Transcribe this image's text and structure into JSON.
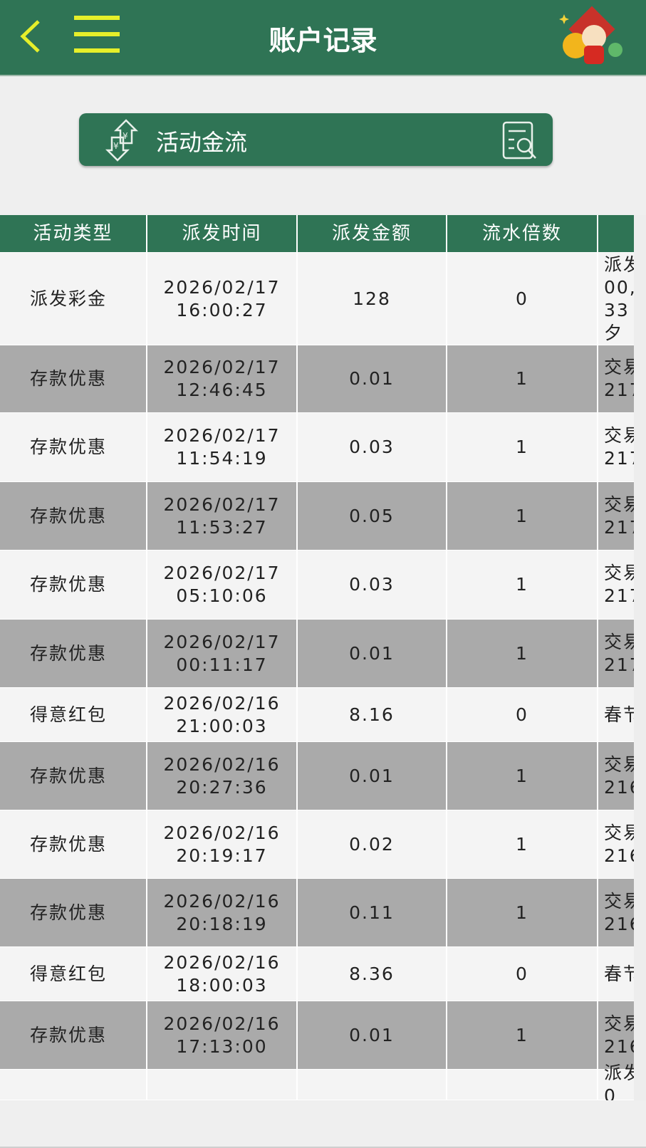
{
  "header": {
    "title": "账户记录",
    "back_icon": "chevron-left-icon",
    "menu_icon": "hamburger-menu-icon",
    "mascot_icon": "new-year-mascot-icon"
  },
  "banner": {
    "label": "活动金流",
    "left_icon": "currency-exchange-arrows-icon",
    "right_icon": "document-search-icon"
  },
  "colors": {
    "brand": "#2f7455",
    "accent": "#e6ef2a",
    "row_alt": "#aaaaaa",
    "row": "#f4f4f4"
  },
  "table": {
    "columns": [
      "活动类型",
      "派发时间",
      "派发金额",
      "流水倍数",
      ""
    ],
    "rows": [
      {
        "type": "派发彩金",
        "time": "2026/02/17\n16:00:27",
        "amount": "128",
        "multiplier": "0",
        "note": "派发\n00,\n33\n夕"
      },
      {
        "type": "存款优惠",
        "time": "2026/02/17\n12:46:45",
        "amount": "0.01",
        "multiplier": "1",
        "note": "交易\n217"
      },
      {
        "type": "存款优惠",
        "time": "2026/02/17\n11:54:19",
        "amount": "0.03",
        "multiplier": "1",
        "note": "交易\n217"
      },
      {
        "type": "存款优惠",
        "time": "2026/02/17\n11:53:27",
        "amount": "0.05",
        "multiplier": "1",
        "note": "交易\n217"
      },
      {
        "type": "存款优惠",
        "time": "2026/02/17\n05:10:06",
        "amount": "0.03",
        "multiplier": "1",
        "note": "交易\n217"
      },
      {
        "type": "存款优惠",
        "time": "2026/02/17\n00:11:17",
        "amount": "0.01",
        "multiplier": "1",
        "note": "交易\n217"
      },
      {
        "type": "得意红包",
        "time": "2026/02/16\n21:00:03",
        "amount": "8.16",
        "multiplier": "0",
        "note": "春节"
      },
      {
        "type": "存款优惠",
        "time": "2026/02/16\n20:27:36",
        "amount": "0.01",
        "multiplier": "1",
        "note": "交易\n216"
      },
      {
        "type": "存款优惠",
        "time": "2026/02/16\n20:19:17",
        "amount": "0.02",
        "multiplier": "1",
        "note": "交易\n216"
      },
      {
        "type": "存款优惠",
        "time": "2026/02/16\n20:18:19",
        "amount": "0.11",
        "multiplier": "1",
        "note": "交易\n216"
      },
      {
        "type": "得意红包",
        "time": "2026/02/16\n18:00:03",
        "amount": "8.36",
        "multiplier": "0",
        "note": "春节"
      },
      {
        "type": "存款优惠",
        "time": "2026/02/16\n17:13:00",
        "amount": "0.01",
        "multiplier": "1",
        "note": "交易\n216"
      },
      {
        "type": "",
        "time": "",
        "amount": "",
        "multiplier": "",
        "note": "派发\n0"
      }
    ]
  }
}
